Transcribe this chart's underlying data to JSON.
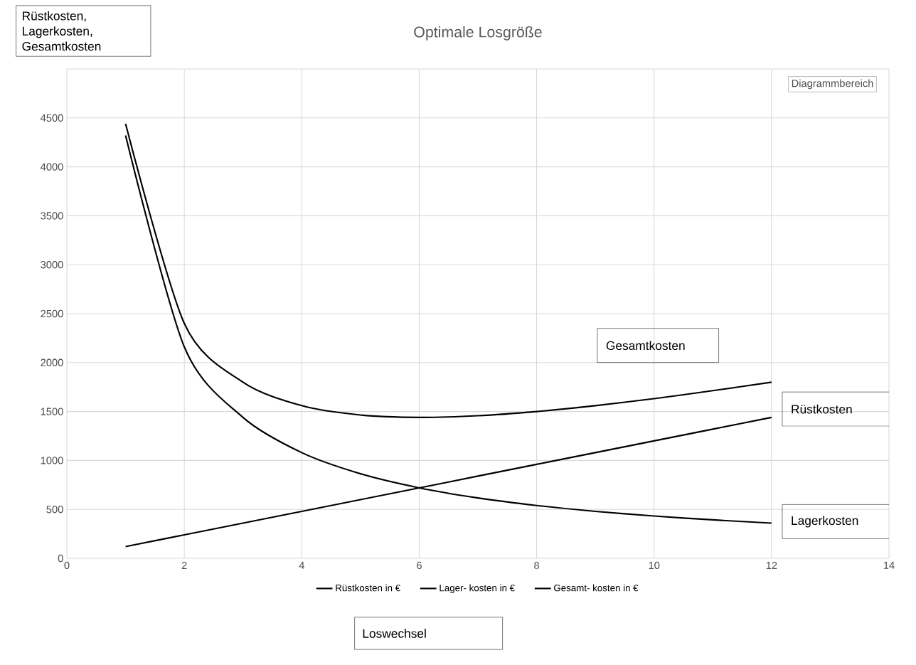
{
  "chart_data": {
    "type": "line",
    "title": "Optimale Losgröße",
    "xlabel": "Loswechsel",
    "ylabel": "Rüstkosten, Lagerkosten, Gesamtkosten",
    "x": [
      1,
      2,
      3,
      4,
      5,
      6,
      7,
      8,
      9,
      10,
      11,
      12
    ],
    "series": [
      {
        "name": "Rüstkosten in €",
        "color": "#000000",
        "values": [
          120,
          240,
          360,
          480,
          600,
          720,
          840,
          960,
          1080,
          1200,
          1320,
          1440
        ]
      },
      {
        "name": "Lager-    kosten in €",
        "color": "#000000",
        "values": [
          4320,
          2160,
          1440,
          1080,
          864,
          720,
          617,
          540,
          480,
          432,
          393,
          360
        ]
      },
      {
        "name": "Gesamt-  kosten in €",
        "color": "#000000",
        "values": [
          4440,
          2400,
          1800,
          1560,
          1464,
          1440,
          1457,
          1500,
          1560,
          1632,
          1713,
          1800
        ]
      }
    ],
    "xlim": [
      0,
      14
    ],
    "xticks": [
      0,
      2,
      4,
      6,
      8,
      10,
      12,
      14
    ],
    "ylim": [
      0,
      5000
    ],
    "yticks": [
      0,
      500,
      1000,
      1500,
      2000,
      2500,
      3000,
      3500,
      4000,
      4500,
      {
        "value": 5000,
        "label": null
      }
    ],
    "grid": true,
    "legend": "bottom",
    "marker": "none",
    "line_style": "solid",
    "annotations": [
      "Gesamtkosten",
      "Rüstkosten",
      "Lagerkosten",
      "Diagrammbereich"
    ]
  }
}
